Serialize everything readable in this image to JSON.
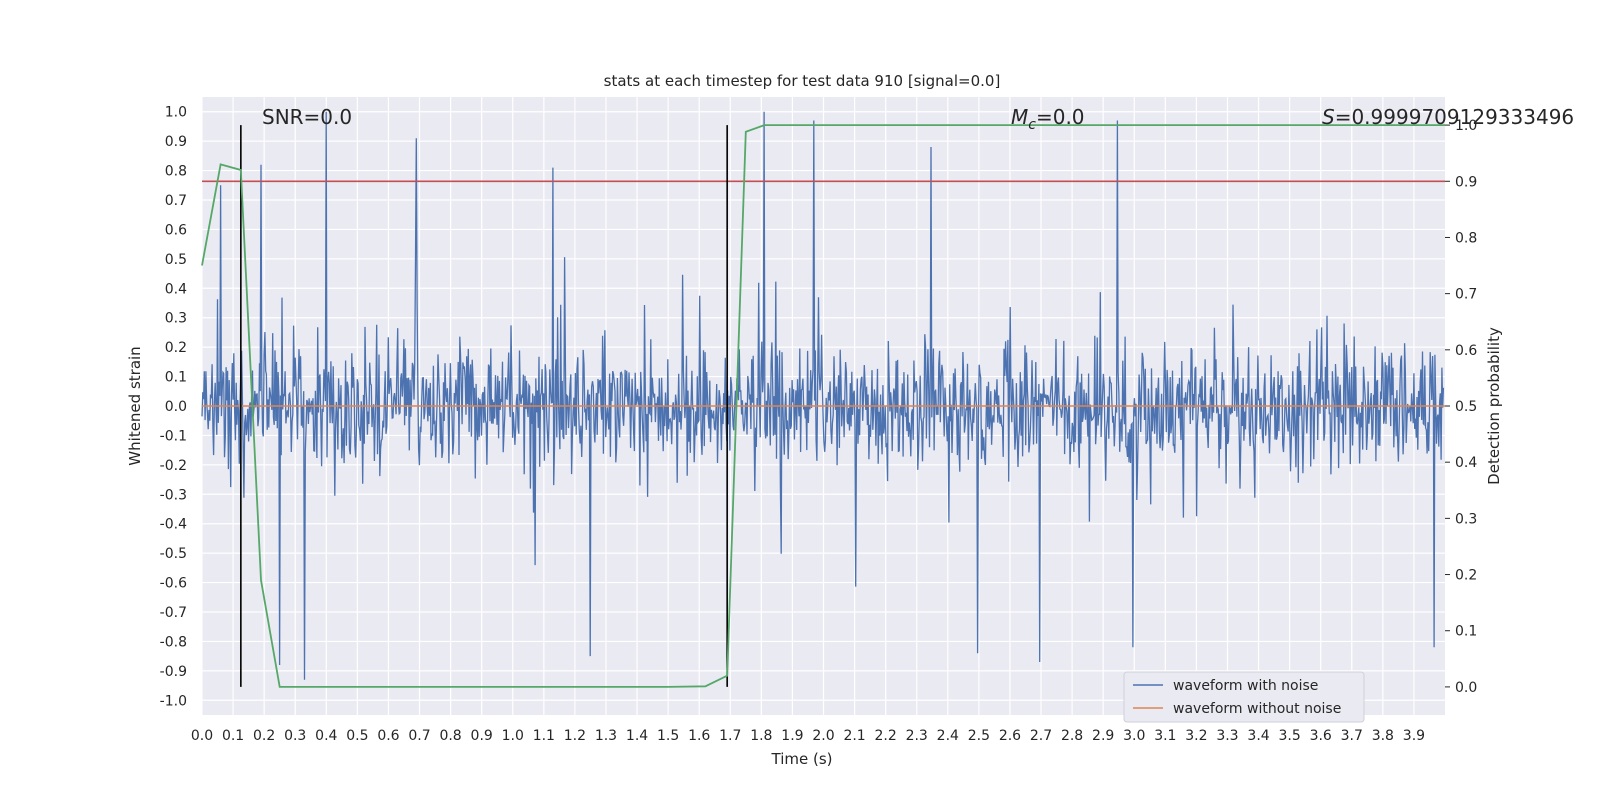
{
  "chart_data": {
    "type": "line",
    "title": "stats at each timestep for test data 910 [signal=0.0]",
    "xlabel": "Time (s)",
    "ylabel": "Whitened strain",
    "y2label": "Detection probability",
    "xlim": [
      0.0,
      4.0
    ],
    "ylim": [
      -1.05,
      1.05
    ],
    "y2lim": [
      -0.05,
      1.05
    ],
    "x_ticks": [
      "0.0",
      "0.1",
      "0.2",
      "0.3",
      "0.4",
      "0.5",
      "0.6",
      "0.7",
      "0.8",
      "0.9",
      "1.0",
      "1.1",
      "1.2",
      "1.3",
      "1.4",
      "1.5",
      "1.6",
      "1.7",
      "1.8",
      "1.9",
      "2.0",
      "2.1",
      "2.2",
      "2.3",
      "2.4",
      "2.5",
      "2.6",
      "2.7",
      "2.8",
      "2.9",
      "3.0",
      "3.1",
      "3.2",
      "3.3",
      "3.4",
      "3.5",
      "3.6",
      "3.7",
      "3.8",
      "3.9"
    ],
    "y_ticks": [
      "1.0",
      "0.9",
      "0.8",
      "0.7",
      "0.6",
      "0.5",
      "0.4",
      "0.3",
      "0.2",
      "0.1",
      "0.0",
      "-0.1",
      "-0.2",
      "-0.3",
      "-0.4",
      "-0.5",
      "-0.6",
      "-0.7",
      "-0.8",
      "-0.9",
      "-1.0"
    ],
    "y2_ticks": [
      "1.0",
      "0.9",
      "0.8",
      "0.7",
      "0.6",
      "0.5",
      "0.4",
      "0.3",
      "0.2",
      "0.1",
      "0.0"
    ],
    "annotations": {
      "snr": "SNR=0.0",
      "mc_symbol": "M",
      "mc_sub": "c",
      "mc_value": "=0.0",
      "s_symbol": "S",
      "s_value": "=0.9999709129333496"
    },
    "threshold_y2": 0.9,
    "vlines_x": [
      0.125,
      1.69
    ],
    "series": [
      {
        "name": "waveform with noise",
        "color": "#4c72b0",
        "axis": "left",
        "samples": 1600,
        "envelope_peaks": [
          {
            "x": 0.06,
            "y": 0.75
          },
          {
            "x": 0.19,
            "y": 0.82
          },
          {
            "x": 0.4,
            "y": 1.0
          },
          {
            "x": 0.69,
            "y": 0.91
          },
          {
            "x": 1.13,
            "y": 0.81
          },
          {
            "x": 1.81,
            "y": 1.0
          },
          {
            "x": 1.97,
            "y": 0.97
          },
          {
            "x": 2.35,
            "y": 0.88
          },
          {
            "x": 2.95,
            "y": 0.97
          },
          {
            "x": 3.97,
            "y": 1.0
          },
          {
            "x": 0.25,
            "y": -0.88
          },
          {
            "x": 0.33,
            "y": -0.93
          },
          {
            "x": 1.25,
            "y": -0.85
          },
          {
            "x": 2.5,
            "y": -0.84
          },
          {
            "x": 2.7,
            "y": -0.87
          },
          {
            "x": 3.0,
            "y": -0.82
          },
          {
            "x": 3.97,
            "y": -0.82
          }
        ]
      },
      {
        "name": "waveform without noise",
        "color": "#dd8452",
        "axis": "left",
        "x": [
          0.0,
          4.0
        ],
        "y": [
          0.0,
          0.0
        ]
      },
      {
        "name": "",
        "color": "#55a868",
        "axis": "right",
        "x": [
          0.0,
          0.06,
          0.125,
          0.19,
          0.25,
          0.5,
          1.0,
          1.5,
          1.62,
          1.69,
          1.75,
          1.81,
          2.5,
          3.0,
          3.5,
          4.0
        ],
        "y": [
          0.75,
          0.93,
          0.92,
          0.19,
          0.0,
          0.0,
          0.0,
          0.0,
          0.001,
          0.02,
          0.988,
          1.0,
          1.0,
          1.0,
          1.0,
          1.0
        ]
      }
    ],
    "legend": {
      "placement": "lower-right",
      "entries": [
        {
          "label": "waveform with noise",
          "color": "#4c72b0"
        },
        {
          "label": "waveform without noise",
          "color": "#dd8452"
        }
      ]
    },
    "grid": true
  },
  "colors": {
    "axes_bg": "#eaeaf2",
    "grid": "#ffffff",
    "threshold": "#c44e52",
    "vline": "#000000"
  }
}
